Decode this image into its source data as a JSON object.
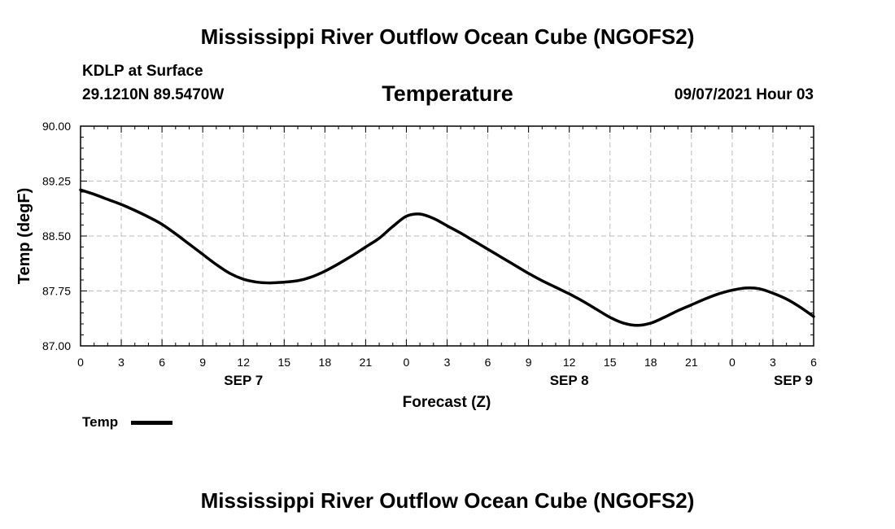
{
  "header": {
    "title": "Mississippi River Outflow Ocean Cube (NGOFS2)",
    "station": "KDLP at Surface",
    "coords": "29.1210N  89.5470W",
    "variable": "Temperature",
    "datetime": "09/07/2021 Hour 03"
  },
  "footer": {
    "title": "Mississippi River Outflow Ocean Cube (NGOFS2)"
  },
  "chart_data": {
    "type": "line",
    "xlabel": "Forecast (Z)",
    "ylabel": "Temp (degF)",
    "ylim": [
      87.0,
      90.0
    ],
    "xlim": [
      0,
      54
    ],
    "y_ticks": [
      "87.00",
      "87.75",
      "88.50",
      "89.25",
      "90.00"
    ],
    "x_ticks": [
      "0",
      "3",
      "6",
      "9",
      "12",
      "15",
      "18",
      "21",
      "0",
      "3",
      "6",
      "9",
      "12",
      "15",
      "18",
      "21",
      "0",
      "3",
      "6"
    ],
    "date_labels": [
      {
        "label": "SEP 7",
        "at_hour": 12
      },
      {
        "label": "SEP 8",
        "at_hour": 36
      },
      {
        "label": "SEP 9",
        "at_hour": 52.5
      }
    ],
    "grid": true,
    "legend_position": "bottom-left",
    "series": [
      {
        "name": "Temp",
        "color": "#000000",
        "x": [
          0,
          1,
          2,
          3,
          4,
          5,
          6,
          7,
          8,
          9,
          10,
          11,
          12,
          13,
          14,
          15,
          16,
          17,
          18,
          19,
          20,
          21,
          22,
          23,
          24,
          25,
          26,
          27,
          28,
          29,
          30,
          31,
          32,
          33,
          34,
          35,
          36,
          37,
          38,
          39,
          40,
          41,
          42,
          43,
          44,
          45,
          46,
          47,
          48,
          49,
          50,
          51,
          52,
          53,
          54
        ],
        "y": [
          89.13,
          89.07,
          89.0,
          88.93,
          88.85,
          88.76,
          88.66,
          88.53,
          88.39,
          88.25,
          88.11,
          87.99,
          87.91,
          87.87,
          87.86,
          87.87,
          87.89,
          87.94,
          88.02,
          88.12,
          88.23,
          88.35,
          88.47,
          88.63,
          88.77,
          88.8,
          88.74,
          88.64,
          88.54,
          88.43,
          88.32,
          88.21,
          88.1,
          87.99,
          87.89,
          87.8,
          87.71,
          87.61,
          87.5,
          87.39,
          87.31,
          87.28,
          87.31,
          87.39,
          87.48,
          87.56,
          87.64,
          87.71,
          87.76,
          87.79,
          87.78,
          87.72,
          87.64,
          87.53,
          87.4
        ]
      }
    ]
  }
}
